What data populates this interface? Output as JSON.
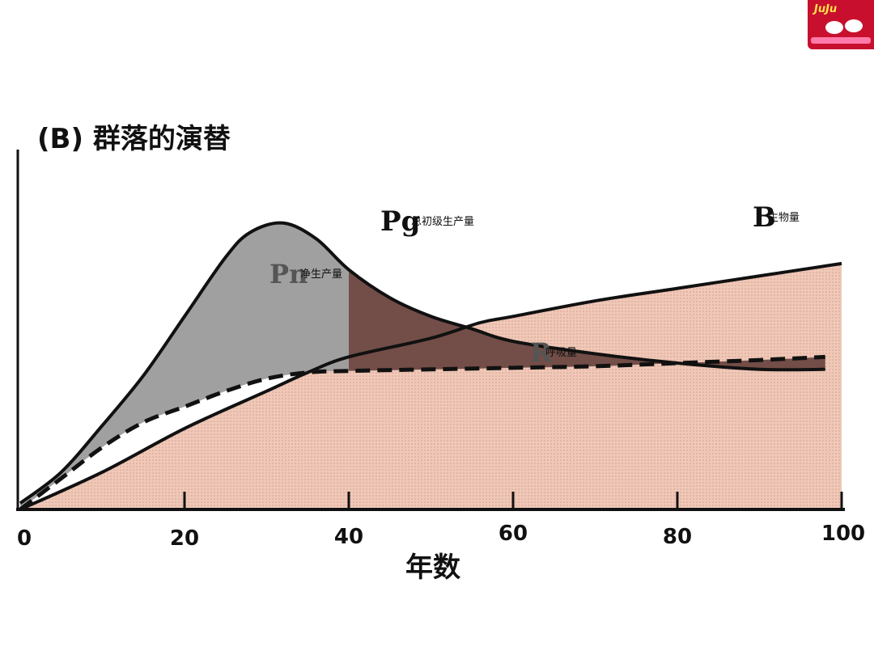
{
  "logo": {
    "text": "JuJu"
  },
  "chart_data": {
    "type": "area",
    "title": "(B) 群落的演替",
    "xlabel": "年数",
    "x_ticks": [
      "0",
      "20",
      "40",
      "60",
      "80",
      "100"
    ],
    "xlim": [
      0,
      100
    ],
    "series": [
      {
        "key": "Pg",
        "label_main": "Pg",
        "label_sub": "总初级生产量",
        "x": [
          0,
          5,
          10,
          15,
          20,
          25,
          28,
          32,
          36,
          40,
          45,
          50,
          55,
          60,
          70,
          80,
          90,
          98
        ],
        "y": [
          2,
          12,
          27,
          43,
          62,
          81,
          89,
          92,
          87,
          77,
          68,
          62,
          58,
          54,
          50,
          47,
          45,
          45
        ]
      },
      {
        "key": "B",
        "label_main": "B",
        "label_sub": "生物量",
        "x": [
          0,
          10,
          20,
          30,
          35,
          40,
          50,
          56,
          60,
          70,
          80,
          90,
          100
        ],
        "y": [
          0,
          12,
          26,
          38,
          44,
          49,
          55,
          60,
          62,
          67,
          71,
          75,
          79
        ]
      },
      {
        "key": "R",
        "label_main": "R",
        "label_sub": "呼吸量",
        "x": [
          0,
          5,
          10,
          15,
          20,
          25,
          30,
          35,
          40,
          50,
          60,
          70,
          80,
          90,
          98
        ],
        "y": [
          0,
          10,
          20,
          28,
          33,
          38,
          42,
          44,
          44.5,
          45,
          45.5,
          46,
          47,
          48,
          49
        ]
      }
    ],
    "annotations": [
      {
        "key": "Pn",
        "label_main": "Pn",
        "label_sub": "净生产量"
      }
    ],
    "colors": {
      "gross_area": "#9b9b9b",
      "net_dark_area": "#6b4038",
      "biomass_area": "#edc2b0",
      "line": "#111111"
    }
  }
}
